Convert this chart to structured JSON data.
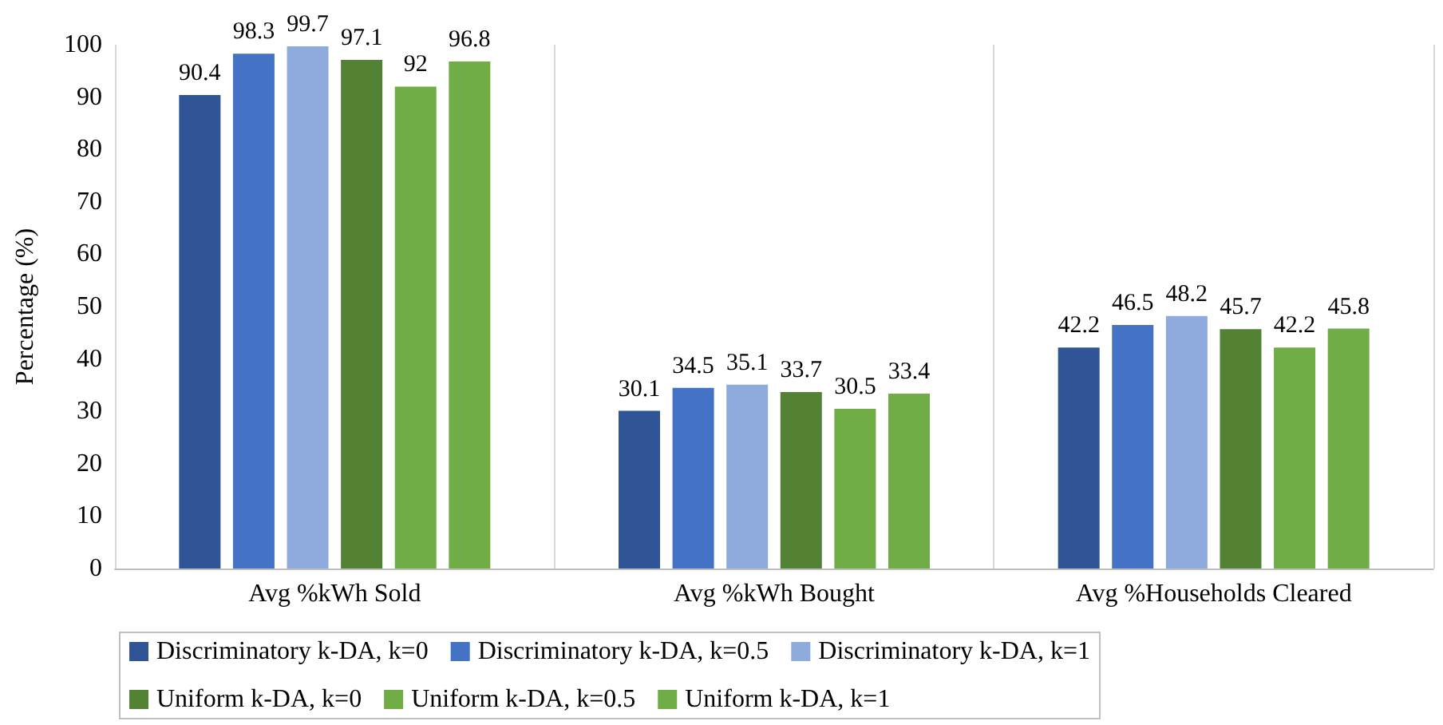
{
  "chart_data": {
    "type": "bar",
    "ylabel": "Percentage (%)",
    "categories": [
      "Avg %kWh Sold",
      "Avg %kWh Bought",
      "Avg %Households Cleared"
    ],
    "series": [
      {
        "name": "Discriminatory k-DA, k=0",
        "color": "#2f5597",
        "values": [
          90.4,
          30.1,
          42.2
        ]
      },
      {
        "name": "Discriminatory k-DA, k=0.5",
        "color": "#4472c4",
        "values": [
          98.3,
          34.5,
          46.5
        ]
      },
      {
        "name": "Discriminatory k-DA, k=1",
        "color": "#8faadc",
        "values": [
          99.7,
          35.1,
          48.2
        ]
      },
      {
        "name": "Uniform k-DA, k=0",
        "color": "#548235",
        "values": [
          97.1,
          33.7,
          45.7
        ]
      },
      {
        "name": "Uniform k-DA, k=0.5",
        "color": "#70ad47",
        "values": [
          92,
          30.5,
          42.2
        ]
      },
      {
        "name": "Uniform k-DA, k=1",
        "color": "#70ad47",
        "values": [
          96.8,
          33.4,
          45.8
        ]
      }
    ],
    "ylim": [
      0,
      100
    ],
    "yticks": [
      0,
      10,
      20,
      30,
      40,
      50,
      60,
      70,
      80,
      90,
      100
    ],
    "grid": "x",
    "legend": "bottom",
    "data_labels": true
  }
}
